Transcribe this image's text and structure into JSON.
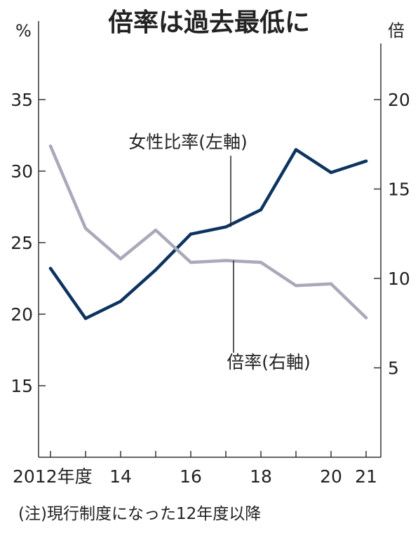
{
  "chart_data": {
    "type": "line",
    "title": "倍率は過去最低に",
    "categories": [
      "2012",
      "13",
      "14",
      "15",
      "16",
      "17",
      "18",
      "19",
      "20",
      "21"
    ],
    "x_tick_labels": [
      "2012年度",
      "14",
      "16",
      "18",
      "20",
      "21"
    ],
    "left_axis": {
      "unit": "%",
      "range": [
        10,
        40
      ],
      "ticks": [
        "15",
        "20",
        "25",
        "30",
        "35"
      ]
    },
    "right_axis": {
      "unit": "倍",
      "range": [
        0,
        24
      ],
      "ticks": [
        "5",
        "10",
        "15",
        "20"
      ]
    },
    "series": [
      {
        "name": "女性比率(左軸)",
        "axis": "left",
        "color": "#0d3460",
        "values": [
          23.2,
          19.7,
          20.9,
          23.1,
          25.6,
          26.1,
          27.3,
          31.5,
          29.9,
          30.7
        ]
      },
      {
        "name": "倍率(右軸)",
        "axis": "right",
        "color": "#a9a9b9",
        "values": [
          17.4,
          12.8,
          11.1,
          12.7,
          10.9,
          11.0,
          10.9,
          9.6,
          9.7,
          7.8
        ]
      }
    ],
    "note": "(注)現行制度になった12年度以降",
    "grid": false,
    "legend": "none"
  }
}
